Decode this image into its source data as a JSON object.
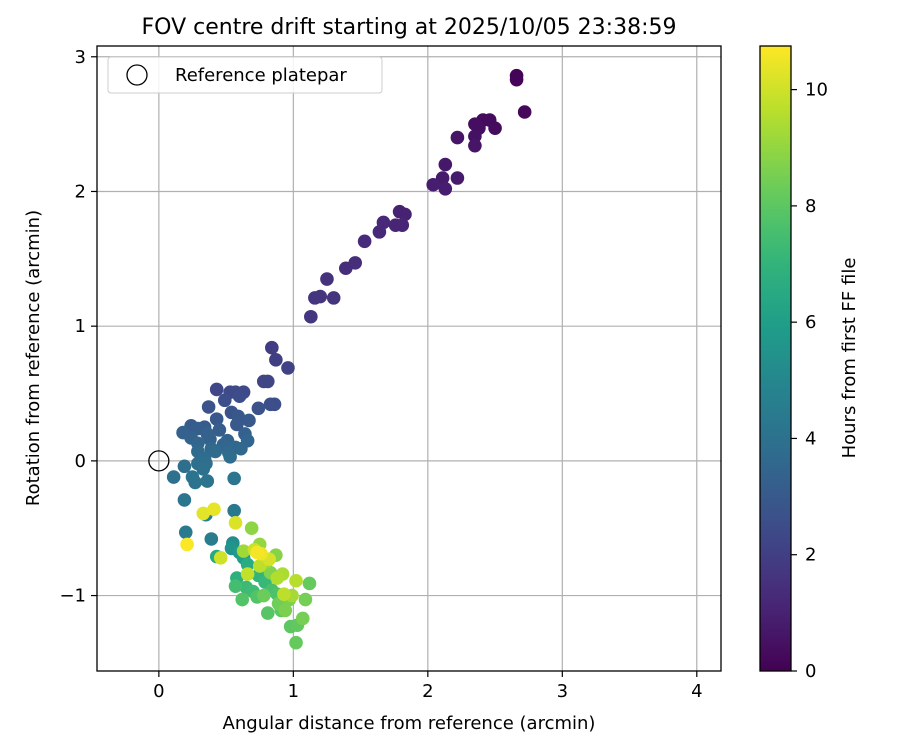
{
  "chart_data": {
    "type": "scatter",
    "title": "FOV centre drift starting at 2025/10/05 23:38:59",
    "xlabel": "Angular distance from reference (arcmin)",
    "ylabel": "Rotation from reference (arcmin)",
    "xlim": [
      -0.46,
      4.18
    ],
    "ylim": [
      -1.56,
      3.08
    ],
    "xticks": [
      0,
      1,
      2,
      3,
      4
    ],
    "yticks": [
      -1,
      0,
      1,
      2,
      3
    ],
    "xtick_labels": [
      "0",
      "1",
      "2",
      "3",
      "4"
    ],
    "ytick_labels": [
      "−1",
      "0",
      "1",
      "2",
      "3"
    ],
    "grid": true,
    "legend": {
      "position": "top-left",
      "entries": [
        "Reference platepar"
      ]
    },
    "reference_point": {
      "x": 0,
      "y": 0
    },
    "colorbar": {
      "label": "Hours from first FF file",
      "range": [
        0,
        10.75
      ],
      "ticks": [
        0,
        2,
        4,
        6,
        8,
        10
      ],
      "tick_labels": [
        "0",
        "2",
        "4",
        "6",
        "8",
        "10"
      ],
      "colormap": "viridis"
    },
    "points": [
      [
        2.66,
        2.86,
        0.1
      ],
      [
        2.66,
        2.83,
        0.1
      ],
      [
        2.72,
        2.59,
        0.2
      ],
      [
        2.41,
        2.53,
        0.3
      ],
      [
        2.46,
        2.53,
        0.3
      ],
      [
        2.35,
        2.5,
        0.4
      ],
      [
        2.38,
        2.47,
        0.4
      ],
      [
        2.5,
        2.47,
        0.3
      ],
      [
        2.35,
        2.41,
        0.5
      ],
      [
        2.22,
        2.4,
        0.6
      ],
      [
        2.35,
        2.34,
        0.6
      ],
      [
        2.13,
        2.2,
        0.7
      ],
      [
        2.11,
        2.1,
        0.8
      ],
      [
        2.22,
        2.1,
        0.8
      ],
      [
        2.04,
        2.05,
        0.9
      ],
      [
        2.13,
        2.02,
        0.9
      ],
      [
        1.79,
        1.85,
        1.0
      ],
      [
        1.83,
        1.83,
        1.0
      ],
      [
        1.76,
        1.75,
        1.1
      ],
      [
        1.81,
        1.75,
        1.1
      ],
      [
        1.67,
        1.77,
        1.2
      ],
      [
        1.64,
        1.7,
        1.2
      ],
      [
        1.53,
        1.63,
        1.3
      ],
      [
        1.46,
        1.47,
        1.4
      ],
      [
        1.39,
        1.43,
        1.4
      ],
      [
        1.25,
        1.35,
        1.5
      ],
      [
        1.16,
        1.21,
        1.6
      ],
      [
        1.2,
        1.22,
        1.6
      ],
      [
        1.3,
        1.21,
        1.6
      ],
      [
        1.13,
        1.07,
        1.7
      ],
      [
        0.84,
        0.84,
        1.9
      ],
      [
        0.87,
        0.75,
        2.0
      ],
      [
        0.96,
        0.69,
        2.1
      ],
      [
        0.81,
        0.59,
        2.2
      ],
      [
        0.78,
        0.59,
        2.2
      ],
      [
        0.43,
        0.53,
        2.3
      ],
      [
        0.53,
        0.51,
        2.4
      ],
      [
        0.57,
        0.51,
        2.4
      ],
      [
        0.63,
        0.51,
        2.4
      ],
      [
        0.6,
        0.48,
        2.5
      ],
      [
        0.49,
        0.45,
        2.6
      ],
      [
        0.83,
        0.42,
        2.6
      ],
      [
        0.86,
        0.42,
        2.6
      ],
      [
        0.37,
        0.4,
        2.7
      ],
      [
        0.74,
        0.39,
        2.7
      ],
      [
        0.54,
        0.36,
        2.8
      ],
      [
        0.43,
        0.31,
        2.9
      ],
      [
        0.59,
        0.33,
        2.9
      ],
      [
        0.67,
        0.3,
        3.0
      ],
      [
        0.58,
        0.27,
        3.0
      ],
      [
        0.24,
        0.26,
        3.1
      ],
      [
        0.34,
        0.25,
        3.1
      ],
      [
        0.29,
        0.24,
        3.2
      ],
      [
        0.45,
        0.23,
        3.2
      ],
      [
        0.18,
        0.21,
        3.3
      ],
      [
        0.36,
        0.2,
        3.3
      ],
      [
        0.64,
        0.2,
        3.3
      ],
      [
        0.24,
        0.17,
        3.4
      ],
      [
        0.38,
        0.16,
        3.4
      ],
      [
        0.51,
        0.15,
        3.4
      ],
      [
        0.66,
        0.15,
        3.5
      ],
      [
        0.29,
        0.13,
        3.5
      ],
      [
        0.48,
        0.12,
        3.5
      ],
      [
        0.39,
        0.09,
        3.6
      ],
      [
        0.57,
        0.1,
        3.6
      ],
      [
        0.61,
        0.09,
        3.6
      ],
      [
        0.29,
        0.07,
        3.7
      ],
      [
        0.42,
        0.07,
        3.7
      ],
      [
        0.52,
        0.06,
        3.7
      ],
      [
        0.53,
        0.03,
        3.8
      ],
      [
        0.34,
        0.02,
        3.8
      ],
      [
        0.29,
        -0.02,
        3.9
      ],
      [
        0.35,
        -0.02,
        3.9
      ],
      [
        0.19,
        -0.04,
        3.9
      ],
      [
        0.33,
        -0.06,
        4.0
      ],
      [
        0.11,
        -0.12,
        4.0
      ],
      [
        0.25,
        -0.12,
        4.1
      ],
      [
        0.27,
        -0.16,
        4.1
      ],
      [
        0.36,
        -0.15,
        4.1
      ],
      [
        0.56,
        -0.13,
        4.2
      ],
      [
        0.19,
        -0.29,
        4.2
      ],
      [
        0.56,
        -0.37,
        4.3
      ],
      [
        0.2,
        -0.53,
        4.4
      ],
      [
        0.39,
        -0.58,
        4.5
      ],
      [
        0.35,
        -0.4,
        4.6
      ],
      [
        0.55,
        -0.61,
        5.3
      ],
      [
        0.54,
        -0.65,
        5.6
      ],
      [
        0.6,
        -0.68,
        5.8
      ],
      [
        0.63,
        -0.72,
        6.0
      ],
      [
        0.43,
        -0.71,
        6.5
      ],
      [
        0.66,
        -0.77,
        6.6
      ],
      [
        0.58,
        -0.87,
        6.8
      ],
      [
        0.74,
        -0.85,
        7.0
      ],
      [
        0.79,
        -0.9,
        7.2
      ],
      [
        0.65,
        -0.94,
        7.3
      ],
      [
        0.7,
        -0.97,
        7.4
      ],
      [
        0.57,
        -0.93,
        7.5
      ],
      [
        0.84,
        -0.96,
        7.6
      ],
      [
        0.88,
        -0.99,
        7.7
      ],
      [
        0.73,
        -1.01,
        7.8
      ],
      [
        0.62,
        -1.03,
        7.8
      ],
      [
        0.81,
        -1.13,
        7.9
      ],
      [
        0.91,
        -1.11,
        8.0
      ],
      [
        0.98,
        -1.23,
        8.0
      ],
      [
        1.03,
        -1.22,
        8.1
      ],
      [
        1.02,
        -1.35,
        8.2
      ],
      [
        1.12,
        -0.91,
        8.2
      ],
      [
        0.78,
        -1.0,
        8.3
      ],
      [
        0.89,
        -1.06,
        8.4
      ],
      [
        1.09,
        -1.03,
        8.5
      ],
      [
        1.07,
        -1.17,
        8.5
      ],
      [
        0.94,
        -1.11,
        8.6
      ],
      [
        0.97,
        -1.03,
        8.6
      ],
      [
        0.83,
        -0.83,
        8.7
      ],
      [
        0.87,
        -0.7,
        8.8
      ],
      [
        0.69,
        -0.5,
        8.9
      ],
      [
        0.75,
        -0.62,
        9.0
      ],
      [
        0.8,
        -0.75,
        9.1
      ],
      [
        0.63,
        -0.67,
        9.2
      ],
      [
        0.99,
        -1.0,
        9.3
      ],
      [
        0.92,
        -0.84,
        9.4
      ],
      [
        0.88,
        -0.87,
        9.5
      ],
      [
        1.02,
        -0.89,
        9.6
      ],
      [
        0.93,
        -0.99,
        9.7
      ],
      [
        0.75,
        -0.78,
        9.7
      ],
      [
        0.66,
        -0.84,
        9.8
      ],
      [
        0.71,
        -0.66,
        9.9
      ],
      [
        0.46,
        -0.72,
        10.0
      ],
      [
        0.82,
        -0.73,
        10.1
      ],
      [
        0.57,
        -0.46,
        10.2
      ],
      [
        0.33,
        -0.39,
        10.3
      ],
      [
        0.41,
        -0.36,
        10.4
      ],
      [
        0.76,
        -0.69,
        10.5
      ],
      [
        0.73,
        -0.68,
        10.6
      ],
      [
        0.21,
        -0.62,
        10.7
      ]
    ]
  }
}
